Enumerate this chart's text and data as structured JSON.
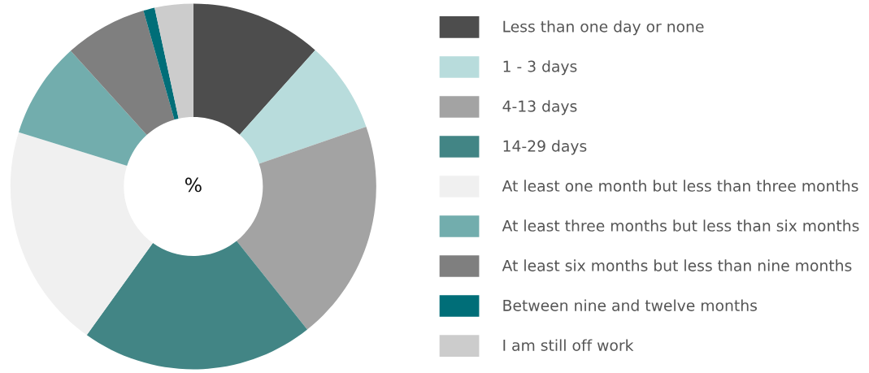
{
  "chart_data": {
    "type": "donut",
    "title": "%",
    "legend": "right",
    "categories": [
      "Less than one day or none",
      "1 - 3 days",
      "4-13 days",
      "14-29 days",
      "At least one month but less than three months",
      "At least three months but less than six months",
      "At least six months but less than nine months",
      "Between nine and twelve months",
      "I am still off work"
    ],
    "values": [
      11.6,
      8.1,
      19.6,
      20.6,
      19.9,
      8.5,
      7.3,
      1.0,
      3.4
    ],
    "colors": [
      "#4d4d4d",
      "#b8dcdc",
      "#a3a3a3",
      "#428585",
      "#f0f0f0",
      "#72adad",
      "#7f7f7f",
      "#006e78",
      "#cccccc"
    ]
  }
}
